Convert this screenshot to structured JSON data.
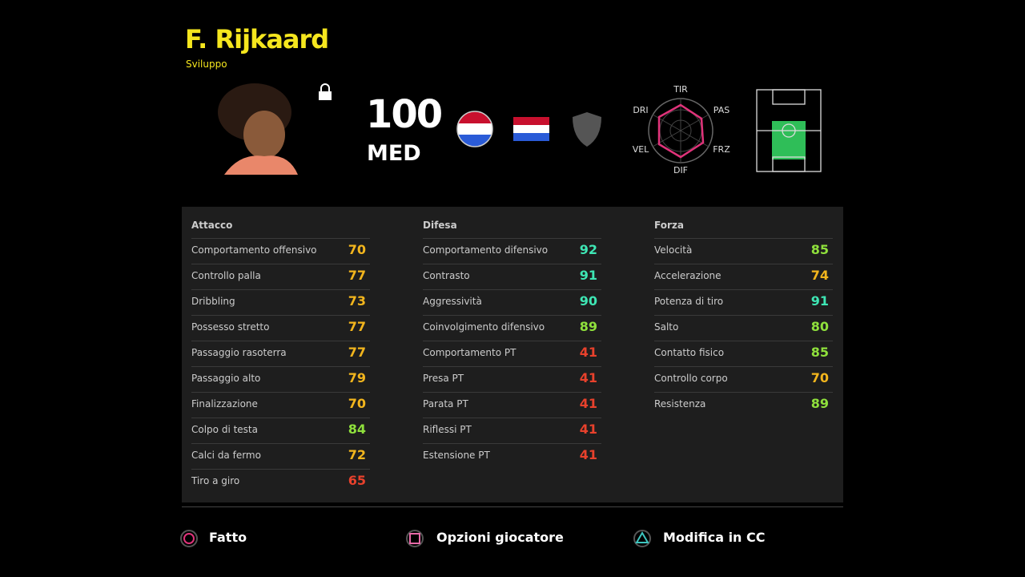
{
  "header": {
    "name": "F. Rijkaard",
    "subtitle": "Sviluppo"
  },
  "player": {
    "rating": 100,
    "position": "MED"
  },
  "radar": {
    "labels": [
      "TIR",
      "PAS",
      "FRZ",
      "DIF",
      "VEL",
      "DRI"
    ]
  },
  "stats": [
    {
      "title": "Attacco",
      "items": [
        {
          "name": "Comportamento offensivo",
          "value": 70,
          "color": "#f2b51d"
        },
        {
          "name": "Controllo palla",
          "value": 77,
          "color": "#f2b51d"
        },
        {
          "name": "Dribbling",
          "value": 73,
          "color": "#f2b51d"
        },
        {
          "name": "Possesso stretto",
          "value": 77,
          "color": "#f2b51d"
        },
        {
          "name": "Passaggio rasoterra",
          "value": 77,
          "color": "#f2b51d"
        },
        {
          "name": "Passaggio alto",
          "value": 79,
          "color": "#f2b51d"
        },
        {
          "name": "Finalizzazione",
          "value": 70,
          "color": "#f2b51d"
        },
        {
          "name": "Colpo di testa",
          "value": 84,
          "color": "#8fe03c"
        },
        {
          "name": "Calci da fermo",
          "value": 72,
          "color": "#f2b51d"
        },
        {
          "name": "Tiro a giro",
          "value": 65,
          "color": "#e8412c"
        }
      ]
    },
    {
      "title": "Difesa",
      "items": [
        {
          "name": "Comportamento difensivo",
          "value": 92,
          "color": "#3ee6b4"
        },
        {
          "name": "Contrasto",
          "value": 91,
          "color": "#3ee6b4"
        },
        {
          "name": "Aggressività",
          "value": 90,
          "color": "#3ee6b4"
        },
        {
          "name": "Coinvolgimento difensivo",
          "value": 89,
          "color": "#8fe03c"
        },
        {
          "name": "Comportamento PT",
          "value": 41,
          "color": "#e8412c"
        },
        {
          "name": "Presa PT",
          "value": 41,
          "color": "#e8412c"
        },
        {
          "name": "Parata PT",
          "value": 41,
          "color": "#e8412c"
        },
        {
          "name": "Riflessi PT",
          "value": 41,
          "color": "#e8412c"
        },
        {
          "name": "Estensione PT",
          "value": 41,
          "color": "#e8412c"
        }
      ]
    },
    {
      "title": "Forza",
      "items": [
        {
          "name": "Velocità",
          "value": 85,
          "color": "#8fe03c"
        },
        {
          "name": "Accelerazione",
          "value": 74,
          "color": "#f2b51d"
        },
        {
          "name": "Potenza di tiro",
          "value": 91,
          "color": "#3ee6b4"
        },
        {
          "name": "Salto",
          "value": 80,
          "color": "#8fe03c"
        },
        {
          "name": "Contatto fisico",
          "value": 85,
          "color": "#8fe03c"
        },
        {
          "name": "Controllo corpo",
          "value": 70,
          "color": "#f2b51d"
        },
        {
          "name": "Resistenza",
          "value": 89,
          "color": "#8fe03c"
        }
      ]
    }
  ],
  "footer": {
    "buttons": [
      "Fatto",
      "Opzioni giocatore",
      "Modifica in CC"
    ]
  }
}
